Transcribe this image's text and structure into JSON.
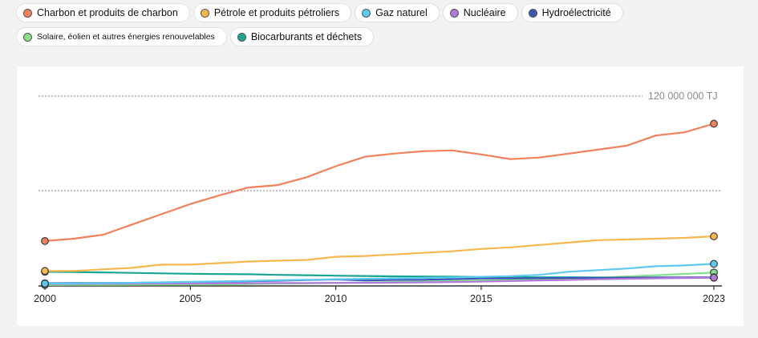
{
  "legend": {
    "rows": [
      [
        {
          "label": "Charbon et produits de charbon",
          "color": "#f4805a",
          "small": false
        },
        {
          "label": "Pétrole et produits pétroliers",
          "color": "#f8b84e",
          "small": false
        },
        {
          "label": "Gaz naturel",
          "color": "#5ccaf0",
          "small": false
        },
        {
          "label": "Nucléaire",
          "color": "#b07ad8",
          "small": false
        },
        {
          "label": "Hydroélectricité",
          "color": "#3c55b4",
          "small": false
        }
      ],
      [
        {
          "label": "Solaire, éolien et autres énergies renouvelables",
          "color": "#86e08c",
          "small": true
        },
        {
          "label": "Biocarburants et déchets",
          "color": "#1aa590",
          "small": false
        }
      ]
    ]
  },
  "chart_data": {
    "type": "line",
    "x": [
      2000,
      2001,
      2002,
      2003,
      2004,
      2005,
      2006,
      2007,
      2008,
      2009,
      2010,
      2011,
      2012,
      2013,
      2014,
      2015,
      2016,
      2017,
      2018,
      2019,
      2020,
      2021,
      2022,
      2023
    ],
    "x_ticks": [
      2000,
      2005,
      2010,
      2015,
      2023
    ],
    "x_tick_labels": [
      "2000",
      "2005",
      "2010",
      "2015",
      "2023"
    ],
    "y_gridlines": [
      0,
      60000000,
      120000000
    ],
    "y_grid_label": "120 000 000 TJ",
    "ylim": [
      0,
      120000000
    ],
    "grid": true,
    "series": [
      {
        "name": "Charbon et produits de charbon",
        "color": "#f4805a",
        "values": [
          28000000,
          29500000,
          32000000,
          38500000,
          45000000,
          51500000,
          57000000,
          62000000,
          63500000,
          68500000,
          75500000,
          81500000,
          83500000,
          85000000,
          85500000,
          83000000,
          80000000,
          81000000,
          83500000,
          86000000,
          88500000,
          95000000,
          97000000,
          102500000
        ]
      },
      {
        "name": "Pétrole et produits pétroliers",
        "color": "#f8b84e",
        "values": [
          9000000,
          9000000,
          10000000,
          11000000,
          13000000,
          13000000,
          14000000,
          15000000,
          15500000,
          16000000,
          18000000,
          18500000,
          19500000,
          20500000,
          21500000,
          23000000,
          24000000,
          25500000,
          27000000,
          28500000,
          29000000,
          29500000,
          30000000,
          31000000
        ]
      },
      {
        "name": "Gaz naturel",
        "color": "#5ccaf0",
        "values": [
          1000000,
          1100000,
          1300000,
          1500000,
          1800000,
          2100000,
          2400000,
          2700000,
          3100000,
          3400000,
          3700000,
          4000000,
          4300000,
          4600000,
          4900000,
          5300000,
          5700000,
          6500000,
          8500000,
          9500000,
          10500000,
          12000000,
          12500000,
          13500000
        ]
      },
      {
        "name": "Nucléaire",
        "color": "#b07ad8",
        "values": [
          800000,
          800000,
          900000,
          900000,
          1000000,
          1000000,
          1100000,
          1200000,
          1300000,
          1300000,
          1400000,
          1500000,
          1600000,
          1800000,
          2000000,
          2300000,
          2600000,
          3000000,
          3300000,
          3700000,
          4000000,
          4300000,
          4500000,
          4800000
        ]
      },
      {
        "name": "Hydroélectricité",
        "color": "#3c55b4",
        "values": [
          1200000,
          1300000,
          1400000,
          1500000,
          1700000,
          1900000,
          2200000,
          2500000,
          2800000,
          3200000,
          3600000,
          3000000,
          3300000,
          3400000,
          3800000,
          4200000,
          4300000,
          4400000,
          4600000,
          4700000,
          4800000,
          4900000,
          4900000,
          5000000
        ]
      },
      {
        "name": "Solaire, éolien et autres énergies renouvelables",
        "color": "#86e08c",
        "values": [
          100000,
          150000,
          200000,
          250000,
          300000,
          400000,
          500000,
          700000,
          900000,
          1100000,
          1400000,
          1700000,
          2000000,
          2300000,
          2600000,
          3000000,
          3300000,
          3700000,
          4200000,
          4800000,
          5500000,
          6300000,
          7100000,
          8000000
        ]
      },
      {
        "name": "Biocarburants et déchets",
        "color": "#1aa590",
        "values": [
          8500000,
          8300000,
          8100000,
          7800000,
          7500000,
          7200000,
          7000000,
          6900000,
          6500000,
          6300000,
          6000000,
          5800000,
          5600000,
          5500000,
          5400000,
          5200000,
          5100000,
          5000000,
          5000000,
          4900000,
          4800000,
          4800000,
          4700000,
          4700000
        ]
      }
    ]
  }
}
